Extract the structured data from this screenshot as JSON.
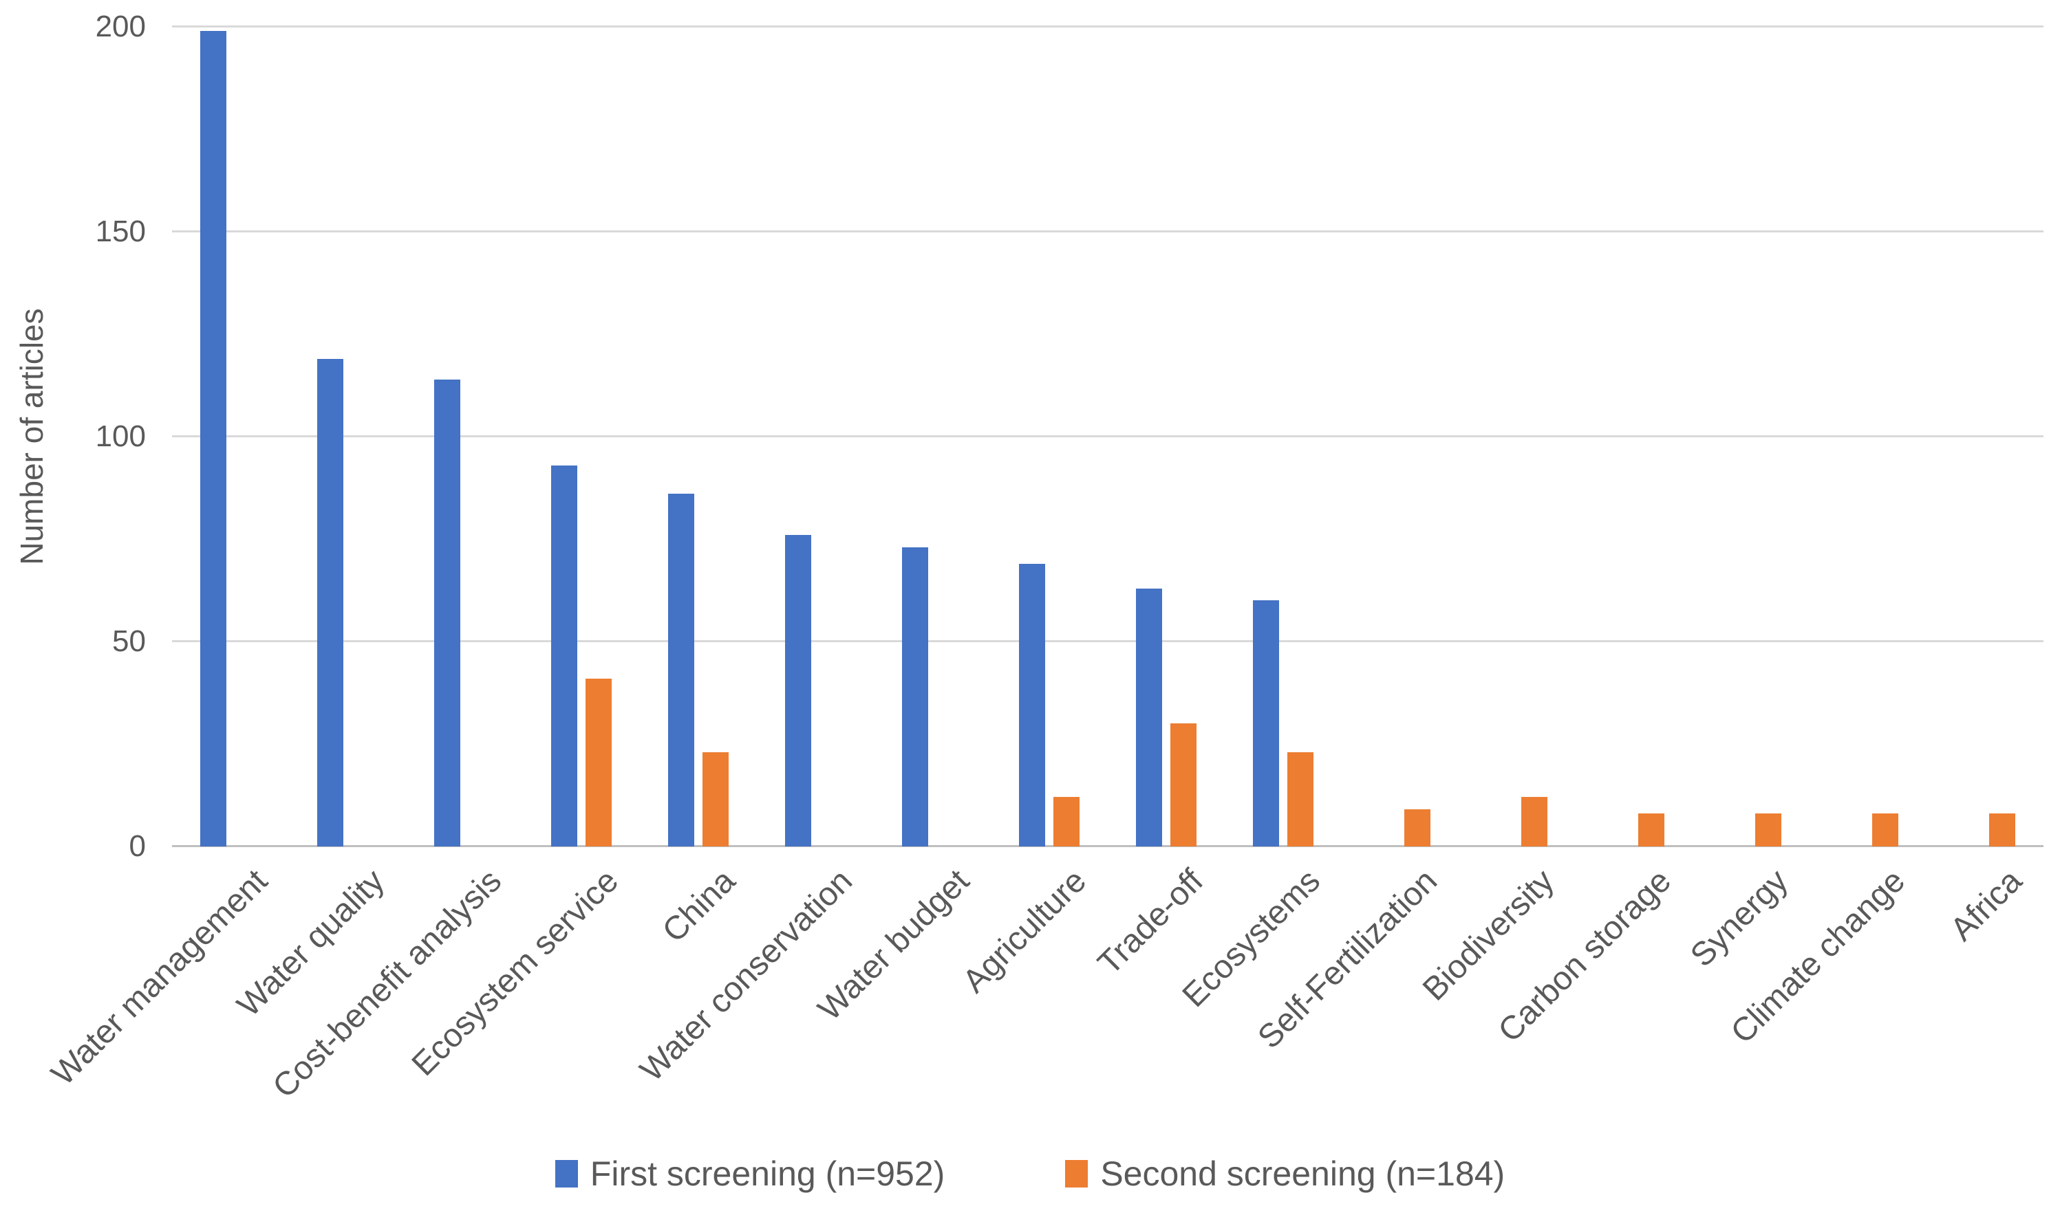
{
  "chart_data": {
    "type": "bar",
    "title": "",
    "xlabel": "",
    "ylabel": "Number of articles",
    "ylim": [
      0,
      200
    ],
    "yticks": [
      0,
      50,
      100,
      150,
      200
    ],
    "grid": "horizontal-gridlines",
    "legend_position": "bottom-center",
    "categories": [
      "Water management",
      "Water quality",
      "Cost-benefit analysis",
      "Ecosystem service",
      "China",
      "Water conservation",
      "Water budget",
      "Agriculture",
      "Trade-off",
      "Ecosystems",
      "Self-Fertilization",
      "Biodiversity",
      "Carbon storage",
      "Synergy",
      "Climate change",
      "Africa"
    ],
    "series": [
      {
        "name": "First screening (n=952)",
        "color": "#4472C4",
        "values": [
          199,
          119,
          114,
          93,
          86,
          76,
          73,
          69,
          63,
          60,
          null,
          null,
          null,
          null,
          null,
          null
        ]
      },
      {
        "name": "Second screening (n=184)",
        "color": "#ED7D31",
        "values": [
          null,
          null,
          null,
          41,
          23,
          null,
          null,
          12,
          30,
          23,
          9,
          12,
          8,
          8,
          8,
          8
        ]
      }
    ]
  },
  "colors": {
    "first_screening": "#4472C4",
    "second_screening": "#ED7D31",
    "text": "#595959",
    "gridline": "#D9D9D9",
    "axis_line": "#BFBFBF",
    "background": "#FFFFFF"
  }
}
